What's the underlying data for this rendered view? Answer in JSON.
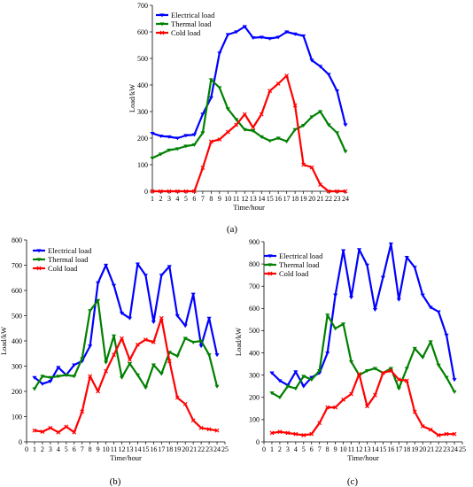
{
  "chart_data": [
    {
      "type": "line",
      "panel_label": "(a)",
      "xlabel": "Time/hour",
      "ylabel": "Load/kW",
      "x": [
        1,
        2,
        3,
        4,
        5,
        6,
        7,
        8,
        9,
        10,
        11,
        12,
        13,
        14,
        15,
        16,
        17,
        18,
        19,
        20,
        21,
        22,
        23,
        24
      ],
      "xlim": [
        1,
        24
      ],
      "ylim": [
        0,
        700
      ],
      "yticks": [
        0,
        100,
        200,
        300,
        400,
        500,
        600,
        700
      ],
      "legend_position": "top-left",
      "grid": false,
      "series": [
        {
          "name": "Electrical load",
          "color": "#0000ff",
          "values": [
            218,
            208,
            205,
            200,
            210,
            213,
            290,
            352,
            520,
            590,
            600,
            620,
            578,
            580,
            575,
            580,
            600,
            592,
            585,
            493,
            470,
            440,
            378,
            250
          ]
        },
        {
          "name": "Thermal load",
          "color": "#008000",
          "values": [
            125,
            140,
            155,
            160,
            170,
            175,
            220,
            420,
            390,
            310,
            270,
            232,
            228,
            205,
            190,
            200,
            188,
            232,
            248,
            280,
            300,
            250,
            220,
            150
          ]
        },
        {
          "name": "Cold load",
          "color": "#ff0000",
          "values": [
            0,
            0,
            0,
            0,
            0,
            0,
            88,
            187,
            195,
            223,
            250,
            290,
            240,
            290,
            378,
            405,
            435,
            323,
            100,
            90,
            25,
            0,
            0,
            0
          ]
        }
      ]
    },
    {
      "type": "line",
      "panel_label": "(b)",
      "xlabel": "Time/hour",
      "ylabel": "Load/kW",
      "x": [
        1,
        2,
        3,
        4,
        5,
        6,
        7,
        8,
        9,
        10,
        11,
        12,
        13,
        14,
        15,
        16,
        17,
        18,
        19,
        20,
        21,
        22,
        23,
        24
      ],
      "xlim": [
        0,
        25
      ],
      "ylim": [
        0,
        800
      ],
      "yticks": [
        0,
        100,
        200,
        300,
        400,
        500,
        600,
        700,
        800
      ],
      "legend_position": "top-left",
      "grid": false,
      "series": [
        {
          "name": "Electrical load",
          "color": "#0000ff",
          "values": [
            255,
            230,
            240,
            295,
            265,
            305,
            320,
            380,
            630,
            700,
            620,
            510,
            490,
            705,
            660,
            475,
            660,
            695,
            500,
            460,
            585,
            380,
            490,
            345
          ]
        },
        {
          "name": "Thermal load",
          "color": "#008000",
          "values": [
            210,
            260,
            255,
            260,
            265,
            260,
            330,
            520,
            560,
            315,
            420,
            255,
            310,
            265,
            215,
            305,
            270,
            355,
            340,
            410,
            395,
            400,
            345,
            220
          ]
        },
        {
          "name": "Cold load",
          "color": "#ff0000",
          "values": [
            45,
            40,
            55,
            38,
            60,
            38,
            120,
            260,
            200,
            280,
            345,
            410,
            325,
            385,
            405,
            395,
            490,
            320,
            175,
            150,
            85,
            55,
            50,
            45
          ]
        }
      ]
    },
    {
      "type": "line",
      "panel_label": "(c)",
      "xlabel": "Time/hour",
      "ylabel": "Load/kW",
      "x": [
        1,
        2,
        3,
        4,
        5,
        6,
        7,
        8,
        9,
        10,
        11,
        12,
        13,
        14,
        15,
        16,
        17,
        18,
        19,
        20,
        21,
        22,
        23,
        24
      ],
      "xlim": [
        0,
        25
      ],
      "ylim": [
        0,
        900
      ],
      "yticks": [
        0,
        100,
        200,
        300,
        400,
        500,
        600,
        700,
        800,
        900
      ],
      "legend_position": "top-left",
      "grid": false,
      "series": [
        {
          "name": "Electrical load",
          "color": "#0000ff",
          "values": [
            310,
            275,
            255,
            315,
            250,
            290,
            310,
            400,
            660,
            860,
            650,
            865,
            795,
            595,
            740,
            890,
            640,
            830,
            785,
            660,
            605,
            585,
            480,
            280
          ]
        },
        {
          "name": "Thermal load",
          "color": "#008000",
          "values": [
            220,
            200,
            250,
            240,
            295,
            280,
            320,
            570,
            510,
            530,
            360,
            300,
            320,
            330,
            310,
            330,
            240,
            330,
            420,
            380,
            450,
            345,
            290,
            225
          ]
        },
        {
          "name": "Cold load",
          "color": "#ff0000",
          "values": [
            40,
            45,
            40,
            35,
            30,
            35,
            85,
            155,
            155,
            190,
            215,
            305,
            160,
            210,
            310,
            320,
            280,
            275,
            135,
            70,
            55,
            30,
            35,
            35
          ]
        }
      ]
    }
  ]
}
